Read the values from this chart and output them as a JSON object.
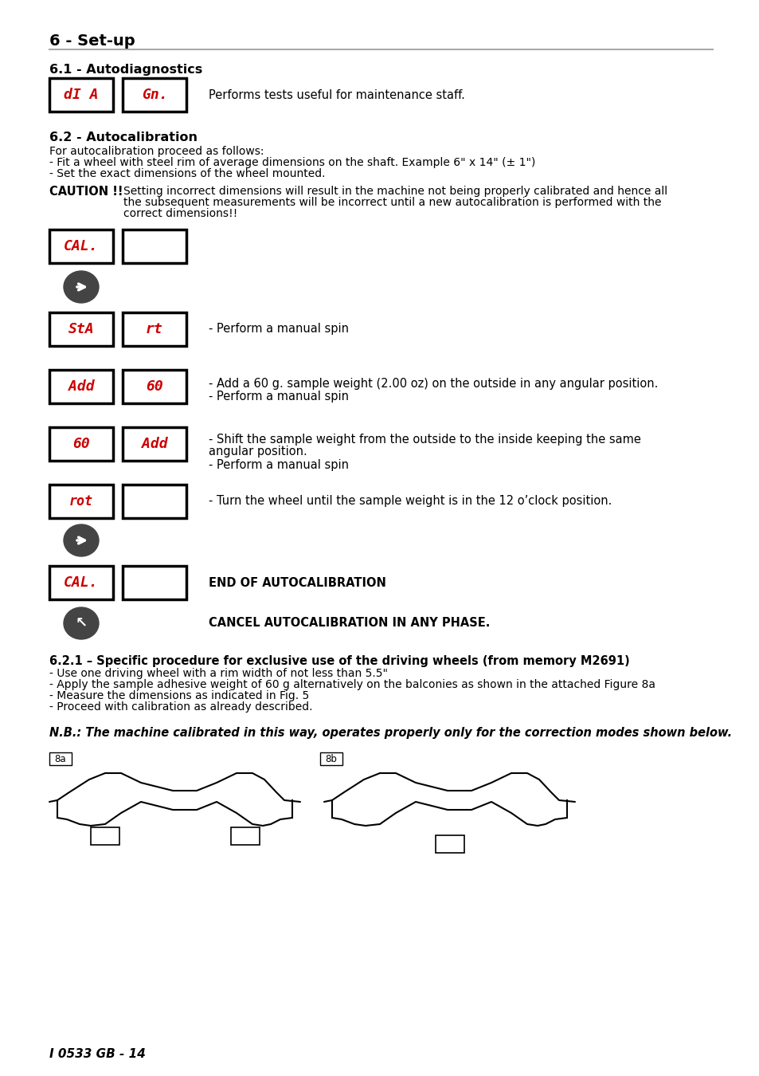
{
  "title": "6 - Set-up",
  "section_61": "6.1 - Autodiagnostics",
  "section_62": "6.2 - Autocalibration",
  "section_621": "6.2.1 – Specific procedure for exclusive use of the driving wheels (from memory M2691)",
  "diag_text": "Performs tests useful for maintenance staff.",
  "caution_label": "CAUTION !!",
  "caution_text_1": "Setting incorrect dimensions will result in the machine not being properly calibrated and hence all",
  "caution_text_2": "the subsequent measurements will be incorrect until a new autocalibration is performed with the",
  "caution_text_3": "correct dimensions!!",
  "autocal_intro_0": "For autocalibration proceed as follows:",
  "autocal_intro_1": "- Fit a wheel with steel rim of average dimensions on the shaft. Example 6\" x 14\" (± 1\")",
  "autocal_intro_2": "- Set the exact dimensions of the wheel mounted.",
  "step1_text": "- Perform a manual spin",
  "step2_text": "- Add a 60 g. sample weight (2.00 oz) on the outside in any angular position.",
  "step2b_text": "- Perform a manual spin",
  "step3_text_1": "- Shift the sample weight from the outside to the inside keeping the same",
  "step3_text_2": "angular position.",
  "step3b_text": "- Perform a manual spin",
  "step4_text": "- Turn the wheel until the sample weight is in the 12 o’clock position.",
  "end_text": "END OF AUTOCALIBRATION",
  "cancel_text": "CANCEL AUTOCALIBRATION IN ANY PHASE.",
  "nb_text": "N.B.: The machine calibrated in this way, operates properly only for the correction modes shown below.",
  "bullet_621_0": "6.2.1 – Specific procedure for exclusive use of the driving wheels (from memory M2691)",
  "bullet_621_1": "- Use one driving wheel with a rim width of not less than 5.5\"",
  "bullet_621_2": "- Apply the sample adhesive weight of 60 g alternatively on the balconies as shown in the attached Figure 8a",
  "bullet_621_3": "- Measure the dimensions as indicated in Fig. 5",
  "bullet_621_4": "- Proceed with calibration as already described.",
  "footer": "I 0533 GB - 14",
  "bg_color": "#ffffff",
  "text_color": "#000000",
  "red_color": "#cc0000",
  "dark_btn_color": "#555555"
}
